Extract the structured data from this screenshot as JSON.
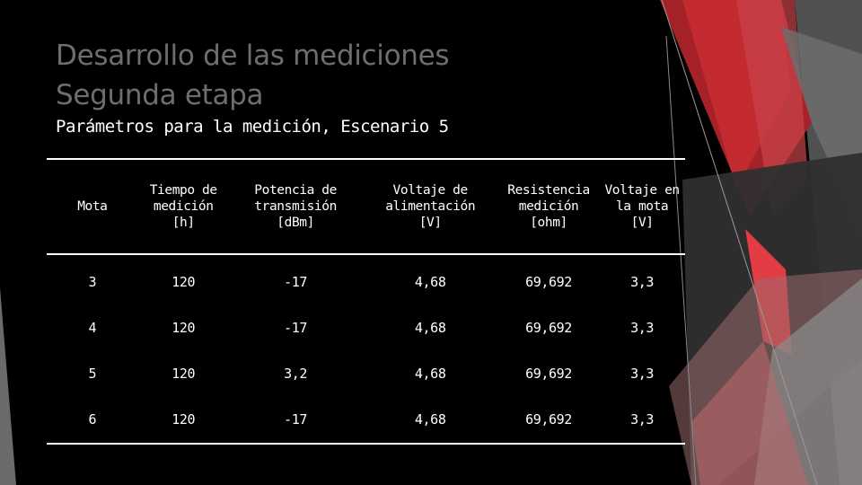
{
  "slide": {
    "title_line1": "Desarrollo de las mediciones",
    "title_line2": "Segunda etapa",
    "subtitle": "Parámetros para la medición, Escenario 5"
  },
  "table": {
    "headers": [
      [
        "Mota"
      ],
      [
        "Tiempo de",
        "medición",
        "[h]"
      ],
      [
        "Potencia de",
        "transmisión",
        "[dBm]"
      ],
      [
        "Voltaje de",
        "alimentación",
        "[V]"
      ],
      [
        "Resistencia",
        "medición",
        "[ohm]"
      ],
      [
        "Voltaje en",
        "la mota",
        "[V]"
      ]
    ],
    "rows": [
      [
        "3",
        "120",
        "-17",
        "4,68",
        "69,692",
        "3,3"
      ],
      [
        "4",
        "120",
        "-17",
        "4,68",
        "69,692",
        "3,3"
      ],
      [
        "5",
        "120",
        "3,2",
        "4,68",
        "69,692",
        "3,3"
      ],
      [
        "6",
        "120",
        "-17",
        "4,68",
        "69,692",
        "3,3"
      ]
    ]
  },
  "theme": {
    "background": "#000000",
    "title_color": "#6e6e6e",
    "text_color": "#ffffff",
    "accent_red": "#c42b30",
    "accent_gray": "#7a7a7a"
  }
}
